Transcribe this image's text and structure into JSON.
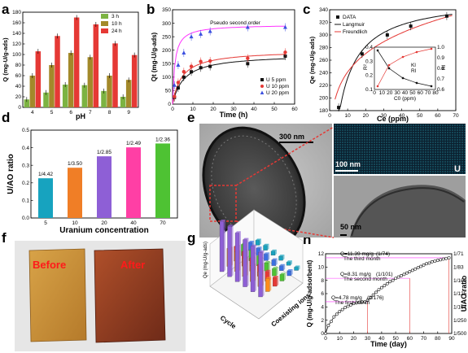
{
  "panel_labels": [
    "a",
    "b",
    "c",
    "d",
    "e",
    "f",
    "g",
    "h"
  ],
  "colors": {
    "green": "#7cb342",
    "olive": "#a3892a",
    "red": "#e53935",
    "black": "#111111",
    "blue": "#3b4fe0",
    "magenta": "#ff33ff",
    "purple": "#8e5fd6",
    "orange": "#f07e26",
    "pink": "#ff3fa5",
    "lime": "#4ec233"
  },
  "chart_data": [
    {
      "id": "a",
      "type": "bar",
      "categories": [
        "4",
        "5",
        "6",
        "7",
        "8",
        "9"
      ],
      "series": [
        {
          "name": "3 h",
          "color": "#7cb342",
          "values": [
            15,
            28,
            43,
            42,
            31,
            20
          ]
        },
        {
          "name": "10 h",
          "color": "#a3892a",
          "values": [
            60,
            80,
            103,
            95,
            60,
            52
          ]
        },
        {
          "name": "24 h",
          "color": "#e53935",
          "values": [
            106,
            135,
            170,
            157,
            121,
            99
          ]
        }
      ],
      "ylim": [
        0,
        180
      ],
      "yticks": [
        "0",
        "20",
        "40",
        "60",
        "80",
        "100",
        "120",
        "140",
        "160",
        "180"
      ],
      "xlabel": "pH",
      "ylabel": "Q (mg-U/g-ads)"
    },
    {
      "id": "b",
      "type": "scatter",
      "title": "Pseudo second order",
      "xlim": [
        0,
        65
      ],
      "ylim": [
        0,
        350
      ],
      "xticks": [
        "0",
        "10",
        "20",
        "30",
        "40",
        "50",
        "60"
      ],
      "yticks": [
        "0",
        "50",
        "100",
        "150",
        "200",
        "250",
        "300",
        "350"
      ],
      "xlabel": "Time (h)",
      "ylabel": "Qt (mg-U/g-ads)",
      "series": [
        {
          "name": "U 5 ppm",
          "color": "#111111",
          "marker": "square",
          "x": [
            1,
            3,
            6,
            10,
            15,
            20,
            40,
            60
          ],
          "y": [
            25,
            60,
            100,
            120,
            135,
            140,
            150,
            178
          ]
        },
        {
          "name": "U 10 ppm",
          "color": "#e53935",
          "marker": "circle",
          "x": [
            1,
            3,
            6,
            10,
            15,
            20,
            40,
            60
          ],
          "y": [
            28,
            80,
            120,
            140,
            158,
            160,
            170,
            192
          ]
        },
        {
          "name": "U 20 ppm",
          "color": "#3b4fe0",
          "marker": "triangle",
          "x": [
            1,
            3,
            6,
            10,
            15,
            20,
            40,
            60
          ],
          "y": [
            70,
            145,
            190,
            250,
            260,
            270,
            285,
            285
          ]
        }
      ],
      "fits": [
        {
          "color": "#111111",
          "qe": 185,
          "k": 0.0009
        },
        {
          "color": "#e53935",
          "qe": 200,
          "k": 0.001
        },
        {
          "color": "#ff33ff",
          "qe": 295,
          "k": 0.0028
        }
      ]
    },
    {
      "id": "c",
      "type": "scatter",
      "xlim": [
        0,
        70
      ],
      "ylim": [
        180,
        340
      ],
      "xticks": [
        "0",
        "10",
        "20",
        "30",
        "40",
        "50",
        "60",
        "70"
      ],
      "yticks": [
        "180",
        "200",
        "220",
        "240",
        "260",
        "280",
        "300",
        "320",
        "340"
      ],
      "xlabel": "Ce (ppm)",
      "ylabel": "Qe (mg-U/g-ads)",
      "series": [
        {
          "name": "DATA",
          "color": "#111111",
          "x": [
            5,
            18,
            32,
            45,
            65
          ],
          "y": [
            185,
            270,
            300,
            314,
            330
          ]
        },
        {
          "name": "Langmuir",
          "color": "#111111"
        },
        {
          "name": "Freundlich",
          "color": "#e53935"
        }
      ],
      "inset": {
        "xlabel": "C0 (ppm)",
        "ylabel_left": "R²",
        "ylabel_right": "Rl",
        "xticks": [
          "0",
          "10",
          "20",
          "30",
          "40",
          "50",
          "60",
          "70",
          "80"
        ],
        "yticks_left": [
          "0.1",
          "0.2",
          "0.3",
          "0.4"
        ],
        "yticks_right": [
          "0.6",
          "0.7",
          "0.8",
          "0.9",
          "1.0"
        ],
        "legend": [
          "Kl",
          "Rl"
        ]
      }
    },
    {
      "id": "d",
      "type": "bar",
      "categories": [
        "5",
        "10",
        "20",
        "40",
        "70"
      ],
      "values": [
        0.226,
        0.286,
        0.351,
        0.402,
        0.424
      ],
      "labels": [
        "1/4.42",
        "1/3.50",
        "1/2.85",
        "1/2.49",
        "1/2.36"
      ],
      "colors": [
        "#17a3bf",
        "#f07e26",
        "#8e5fd6",
        "#ff3fa5",
        "#4ec233"
      ],
      "ylim": [
        0,
        0.5
      ],
      "yticks": [
        "0.0",
        "0.1",
        "0.2",
        "0.3",
        "0.4",
        "0.5"
      ],
      "xlabel": "Uranium concentration",
      "ylabel": "U/AO ratio"
    },
    {
      "id": "g",
      "type": "bar3d",
      "xlabel": "Cycle",
      "ylabel": "Coexisting ions",
      "zlabel": "Qe (mg-U/g-ads)"
    },
    {
      "id": "h",
      "type": "line",
      "xlim": [
        0,
        90
      ],
      "ylim": [
        0,
        12
      ],
      "xticks": [
        "0",
        "10",
        "20",
        "30",
        "40",
        "50",
        "60",
        "70",
        "80",
        "90"
      ],
      "yticks": [
        "0",
        "2",
        "4",
        "6",
        "8",
        "10",
        "12"
      ],
      "y2ticks": [
        "1/71",
        "1/83",
        "1/100",
        "1/125",
        "1/167",
        "1/250",
        "1/500"
      ],
      "xlabel": "Time (day)",
      "ylabel": "Q (mg-U/g-adsorbent)",
      "y2label": "U/AO ratio",
      "x": [
        0,
        2,
        4,
        6,
        8,
        10,
        12,
        14,
        16,
        18,
        20,
        22,
        24,
        26,
        28,
        30,
        32,
        34,
        36,
        38,
        40,
        42,
        44,
        46,
        48,
        50,
        52,
        54,
        56,
        58,
        60,
        62,
        64,
        66,
        68,
        70,
        72,
        74,
        76,
        78,
        80,
        82,
        84,
        86,
        88
      ],
      "y": [
        0,
        1.2,
        1.8,
        2.5,
        2.9,
        3.3,
        3.6,
        3.9,
        4.1,
        4.3,
        4.5,
        4.6,
        4.7,
        4.75,
        4.78,
        5.0,
        5.4,
        5.8,
        6.2,
        6.6,
        6.9,
        7.2,
        7.5,
        7.8,
        8.0,
        8.3,
        8.5,
        8.7,
        8.9,
        9.1,
        9.3,
        9.5,
        9.7,
        9.9,
        10.1,
        10.3,
        10.5,
        10.6,
        10.8,
        10.9,
        11.0,
        11.1,
        11.2,
        11.3,
        11.39
      ],
      "annotations": [
        {
          "text": "Q=11.39 mg/g",
          "ratio": "(1/74)",
          "sub": "The third month",
          "y": 11.39
        },
        {
          "text": "Q=8.31 mg/g",
          "ratio": "(1/101)",
          "sub": "The second month",
          "y": 8.31
        },
        {
          "text": "Q=4.78 mg/g",
          "ratio": "(1/176)",
          "sub": "The first month",
          "y": 4.78
        }
      ]
    }
  ],
  "panel_e": {
    "scale_main": "300 nm",
    "scale_map": "100 nm",
    "map_element": "U",
    "scale_zoom": "50 nm"
  },
  "panel_f": {
    "before_label": "Before",
    "after_label": "After"
  }
}
